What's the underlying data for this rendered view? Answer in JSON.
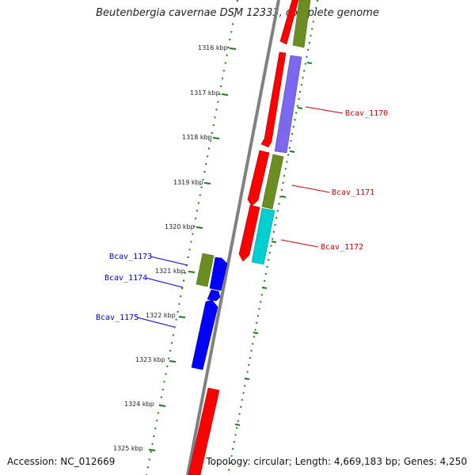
{
  "title": "Beutenbergia cavernae DSM 12333, complete genome",
  "accession": "Accession: NC_012669",
  "summary": "Topology: circular; Length: 4,669,183 bp; Genes: 4,250",
  "colors": {
    "backbone": "#808080",
    "tick": "#1a7a1a",
    "red": "#ff0000",
    "olive": "#6b8e23",
    "slateblue": "#7b68ee",
    "cyan": "#00ced1",
    "blue": "#0000ff",
    "label_right": "#cc0000",
    "label_left": "#0000cc"
  },
  "scale_labels": [
    "1316 kbp",
    "1317 kbp",
    "1318 kbp",
    "1319 kbp",
    "1320 kbp",
    "1321 kbp",
    "1322 kbp",
    "1323 kbp",
    "1324 kbp",
    "1325 kbp"
  ],
  "gene_labels": {
    "bcav_1170": "Bcav_1170",
    "bcav_1171": "Bcav_1171",
    "bcav_1172": "Bcav_1172",
    "bcav_1173": "Bcav_1173",
    "bcav_1174": "Bcav_1174",
    "bcav_1175": "Bcav_1175"
  }
}
